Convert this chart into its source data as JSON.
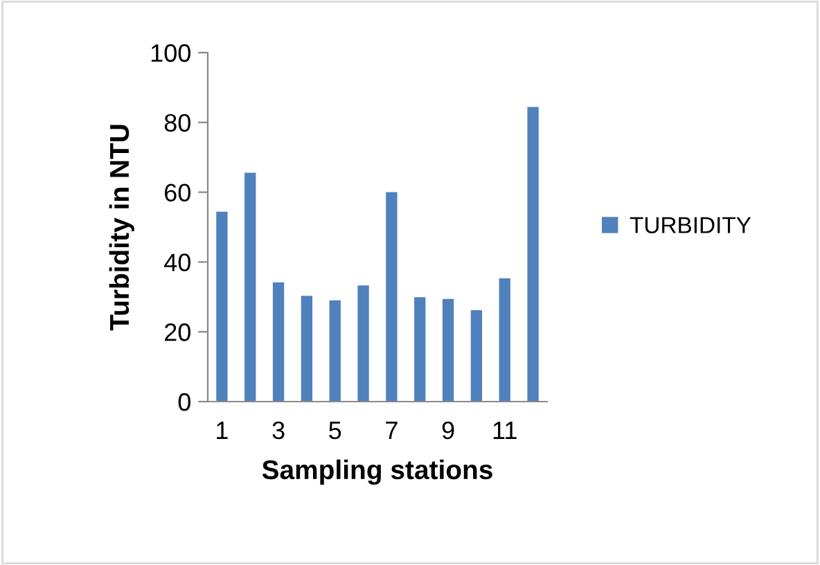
{
  "chart_data": {
    "type": "bar",
    "xlabel": "Sampling stations",
    "ylabel": "Turbidity in NTU",
    "categories": [
      "1",
      null,
      "3",
      null,
      "5",
      null,
      "7",
      null,
      "9",
      null,
      "11",
      null
    ],
    "series": [
      {
        "name": "TURBIDITY",
        "color": "#4f81bd",
        "values": [
          54.4,
          65.6,
          34.2,
          30.3,
          29.0,
          33.3,
          60.0,
          29.9,
          29.4,
          26.2,
          35.3,
          84.4
        ]
      }
    ],
    "ylim": [
      0,
      100
    ],
    "yticks": [
      0,
      20,
      40,
      60,
      80,
      100
    ],
    "grid": false,
    "legend": "right"
  }
}
